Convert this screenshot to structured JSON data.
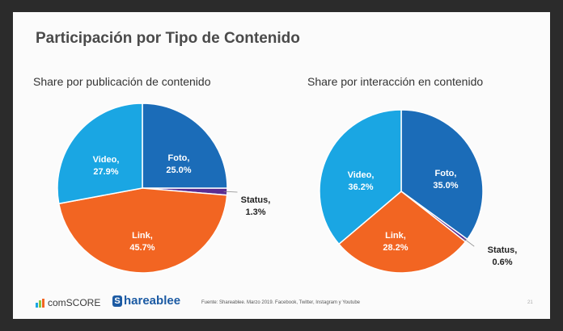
{
  "slide": {
    "title": "Participación por Tipo de Contenido",
    "source": "Fuente: Shareablee. Marzo 2019. Facebook, Twitter, Instagram y Youtube",
    "page_number": "21"
  },
  "logos": {
    "comscore": "comSCORE",
    "shareablee": "hareablee"
  },
  "colors": {
    "Foto": "#1b6cb8",
    "Status": "#5b2d91",
    "Link": "#f26522",
    "Video": "#1aa6e3"
  },
  "chart_data": [
    {
      "type": "pie",
      "title": "Share por publicación de contenido",
      "series": [
        {
          "name": "Foto",
          "value": 25.0,
          "label": "25.0%"
        },
        {
          "name": "Status",
          "value": 1.3,
          "label": "1.3%"
        },
        {
          "name": "Link",
          "value": 45.7,
          "label": "45.7%"
        },
        {
          "name": "Video",
          "value": 27.9,
          "label": "27.9%"
        }
      ]
    },
    {
      "type": "pie",
      "title": "Share por interacción en contenido",
      "series": [
        {
          "name": "Foto",
          "value": 35.0,
          "label": "35.0%"
        },
        {
          "name": "Status",
          "value": 0.6,
          "label": "0.6%"
        },
        {
          "name": "Link",
          "value": 28.2,
          "label": "28.2%"
        },
        {
          "name": "Video",
          "value": 36.2,
          "label": "36.2%"
        }
      ]
    }
  ]
}
